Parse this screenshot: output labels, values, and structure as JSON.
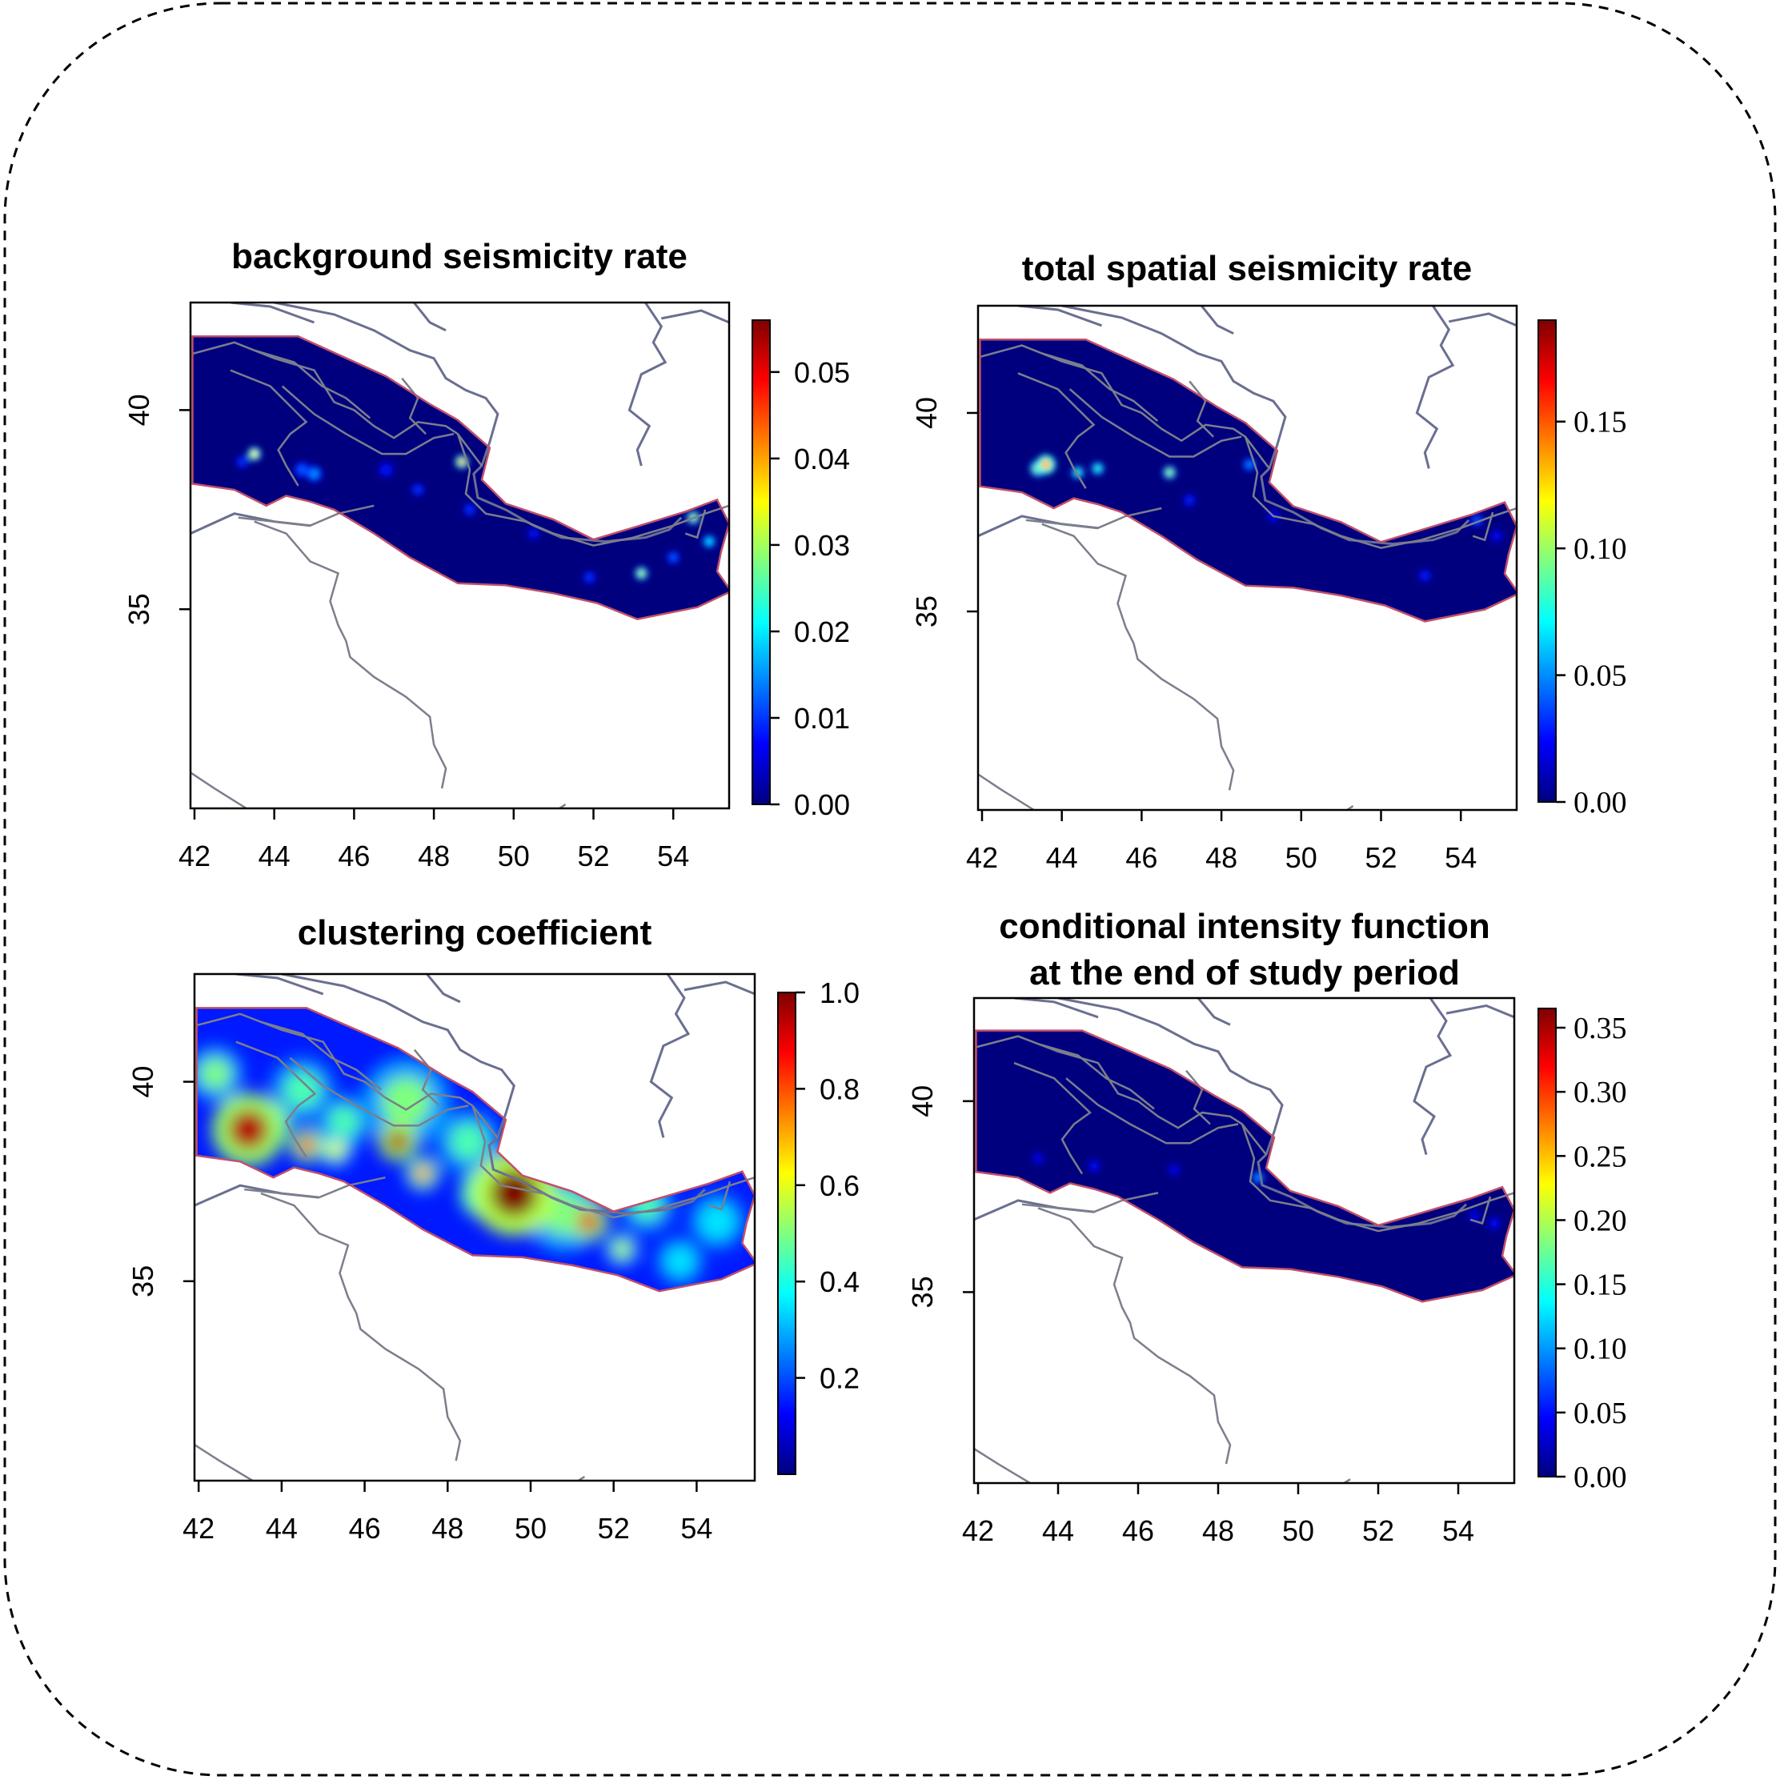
{
  "chart_data": [
    {
      "type": "heatmap",
      "title": "background seismicity rate",
      "xlabel": "",
      "ylabel": "",
      "x_ticks": [
        "42",
        "44",
        "46",
        "48",
        "50",
        "52",
        "54"
      ],
      "x_tick_values": [
        42,
        44,
        46,
        48,
        50,
        52,
        54
      ],
      "y_ticks": [
        "35",
        "40"
      ],
      "y_tick_values": [
        35,
        40
      ],
      "xlim": [
        41.9,
        55.4
      ],
      "ylim": [
        30.0,
        42.7
      ],
      "colorbar": {
        "ticks": [
          "0.00",
          "0.01",
          "0.02",
          "0.03",
          "0.04",
          "0.05"
        ],
        "tick_values": [
          0,
          0.01,
          0.02,
          0.03,
          0.04,
          0.05
        ],
        "range": [
          0,
          0.056
        ],
        "font": "sans"
      },
      "base_level": 0.0,
      "hotspots": [
        {
          "lon": 43.5,
          "lat": 38.9,
          "value": 0.035,
          "r": 0.12
        },
        {
          "lon": 48.7,
          "lat": 38.7,
          "value": 0.04,
          "r": 0.12
        },
        {
          "lon": 53.2,
          "lat": 35.9,
          "value": 0.03,
          "r": 0.12
        },
        {
          "lon": 54.5,
          "lat": 37.3,
          "value": 0.03,
          "r": 0.12
        },
        {
          "lon": 54.9,
          "lat": 36.7,
          "value": 0.02,
          "r": 0.12
        },
        {
          "lon": 45.0,
          "lat": 38.4,
          "value": 0.015,
          "r": 0.15
        },
        {
          "lon": 44.7,
          "lat": 38.5,
          "value": 0.012,
          "r": 0.15
        },
        {
          "lon": 43.2,
          "lat": 38.7,
          "value": 0.01,
          "r": 0.12
        },
        {
          "lon": 46.8,
          "lat": 38.5,
          "value": 0.008,
          "r": 0.15
        },
        {
          "lon": 47.6,
          "lat": 38.0,
          "value": 0.01,
          "r": 0.12
        },
        {
          "lon": 48.9,
          "lat": 37.5,
          "value": 0.01,
          "r": 0.12
        },
        {
          "lon": 50.5,
          "lat": 36.9,
          "value": 0.008,
          "r": 0.12
        },
        {
          "lon": 51.9,
          "lat": 35.8,
          "value": 0.01,
          "r": 0.1
        },
        {
          "lon": 54.0,
          "lat": 36.3,
          "value": 0.012,
          "r": 0.1
        }
      ]
    },
    {
      "type": "heatmap",
      "title": "total spatial seismicity rate",
      "xlabel": "",
      "ylabel": "",
      "x_ticks": [
        "42",
        "44",
        "46",
        "48",
        "50",
        "52",
        "54"
      ],
      "x_tick_values": [
        42,
        44,
        46,
        48,
        50,
        52,
        54
      ],
      "y_ticks": [
        "35",
        "40"
      ],
      "y_tick_values": [
        35,
        40
      ],
      "xlim": [
        41.9,
        55.4
      ],
      "ylim": [
        30.0,
        42.7
      ],
      "colorbar": {
        "ticks": [
          "0.00",
          "0.05",
          "0.10",
          "0.15"
        ],
        "tick_values": [
          0,
          0.05,
          0.1,
          0.15
        ],
        "range": [
          0,
          0.19
        ],
        "font": "serif"
      },
      "base_level": 0.0,
      "hotspots": [
        {
          "lon": 43.6,
          "lat": 38.7,
          "value": 0.13,
          "r": 0.18
        },
        {
          "lon": 43.4,
          "lat": 38.6,
          "value": 0.1,
          "r": 0.15
        },
        {
          "lon": 44.4,
          "lat": 38.5,
          "value": 0.08,
          "r": 0.1
        },
        {
          "lon": 44.9,
          "lat": 38.6,
          "value": 0.08,
          "r": 0.1
        },
        {
          "lon": 46.7,
          "lat": 38.5,
          "value": 0.1,
          "r": 0.1
        },
        {
          "lon": 48.7,
          "lat": 38.7,
          "value": 0.05,
          "r": 0.1
        },
        {
          "lon": 47.2,
          "lat": 37.8,
          "value": 0.03,
          "r": 0.1
        },
        {
          "lon": 49.3,
          "lat": 37.4,
          "value": 0.025,
          "r": 0.12
        },
        {
          "lon": 54.4,
          "lat": 37.3,
          "value": 0.04,
          "r": 0.1
        },
        {
          "lon": 53.1,
          "lat": 35.9,
          "value": 0.03,
          "r": 0.1
        },
        {
          "lon": 54.9,
          "lat": 36.9,
          "value": 0.025,
          "r": 0.1
        }
      ]
    },
    {
      "type": "heatmap",
      "title": "clustering coefficient",
      "xlabel": "",
      "ylabel": "",
      "x_ticks": [
        "42",
        "44",
        "46",
        "48",
        "50",
        "52",
        "54"
      ],
      "x_tick_values": [
        42,
        44,
        46,
        48,
        50,
        52,
        54
      ],
      "y_ticks": [
        "35",
        "40"
      ],
      "y_tick_values": [
        35,
        40
      ],
      "xlim": [
        41.9,
        55.4
      ],
      "ylim": [
        30.0,
        42.7
      ],
      "colorbar": {
        "ticks": [
          "0.2",
          "0.4",
          "0.6",
          "0.8",
          "1.0"
        ],
        "tick_values": [
          0.2,
          0.4,
          0.6,
          0.8,
          1.0
        ],
        "range": [
          0,
          1.0
        ],
        "font": "sans"
      },
      "base_level": 0.15,
      "hotspots": [
        {
          "lon": 43.2,
          "lat": 38.8,
          "value": 0.95,
          "r": 0.65
        },
        {
          "lon": 43.6,
          "lat": 38.9,
          "value": 0.85,
          "r": 0.45
        },
        {
          "lon": 44.6,
          "lat": 38.4,
          "value": 0.85,
          "r": 0.3
        },
        {
          "lon": 45.3,
          "lat": 38.3,
          "value": 0.6,
          "r": 0.3
        },
        {
          "lon": 46.8,
          "lat": 38.5,
          "value": 0.95,
          "r": 0.35
        },
        {
          "lon": 47.4,
          "lat": 37.7,
          "value": 0.75,
          "r": 0.3
        },
        {
          "lon": 49.6,
          "lat": 37.2,
          "value": 1.0,
          "r": 0.75
        },
        {
          "lon": 48.9,
          "lat": 37.2,
          "value": 0.8,
          "r": 0.45
        },
        {
          "lon": 51.4,
          "lat": 36.5,
          "value": 0.9,
          "r": 0.35
        },
        {
          "lon": 52.2,
          "lat": 35.8,
          "value": 0.55,
          "r": 0.3
        },
        {
          "lon": 42.4,
          "lat": 40.2,
          "value": 0.5,
          "r": 0.5
        },
        {
          "lon": 44.5,
          "lat": 39.8,
          "value": 0.45,
          "r": 0.6
        },
        {
          "lon": 47.0,
          "lat": 39.5,
          "value": 0.5,
          "r": 0.8
        },
        {
          "lon": 48.5,
          "lat": 38.5,
          "value": 0.45,
          "r": 0.6
        },
        {
          "lon": 50.8,
          "lat": 36.7,
          "value": 0.5,
          "r": 0.7
        },
        {
          "lon": 52.8,
          "lat": 36.9,
          "value": 0.45,
          "r": 0.5
        },
        {
          "lon": 54.5,
          "lat": 36.5,
          "value": 0.35,
          "r": 0.6
        },
        {
          "lon": 53.6,
          "lat": 35.5,
          "value": 0.35,
          "r": 0.5
        },
        {
          "lon": 45.5,
          "lat": 39.0,
          "value": 0.45,
          "r": 0.5
        }
      ]
    },
    {
      "type": "heatmap",
      "title": "conditional intensity function",
      "subtitle": "at the end of study period",
      "xlabel": "",
      "ylabel": "",
      "x_ticks": [
        "42",
        "44",
        "46",
        "48",
        "50",
        "52",
        "54"
      ],
      "x_tick_values": [
        42,
        44,
        46,
        48,
        50,
        52,
        54
      ],
      "y_ticks": [
        "35",
        "40"
      ],
      "y_tick_values": [
        35,
        40
      ],
      "xlim": [
        41.9,
        55.4
      ],
      "ylim": [
        30.0,
        42.7
      ],
      "colorbar": {
        "ticks": [
          "0.00",
          "0.05",
          "0.10",
          "0.15",
          "0.20",
          "0.25",
          "0.30",
          "0.35"
        ],
        "tick_values": [
          0,
          0.05,
          0.1,
          0.15,
          0.2,
          0.25,
          0.3,
          0.35
        ],
        "range": [
          0,
          0.365
        ],
        "font": "serif"
      },
      "base_level": 0.0,
      "hotspots": [
        {
          "lon": 43.5,
          "lat": 38.5,
          "value": 0.04,
          "r": 0.1
        },
        {
          "lon": 44.9,
          "lat": 38.3,
          "value": 0.05,
          "r": 0.1
        },
        {
          "lon": 46.9,
          "lat": 38.2,
          "value": 0.04,
          "r": 0.1
        },
        {
          "lon": 49.0,
          "lat": 38.0,
          "value": 0.1,
          "r": 0.08
        },
        {
          "lon": 54.4,
          "lat": 37.0,
          "value": 0.04,
          "r": 0.08
        },
        {
          "lon": 54.9,
          "lat": 36.8,
          "value": 0.05,
          "r": 0.08
        }
      ]
    }
  ],
  "colors": {
    "colormap": [
      "#00007f",
      "#0000ff",
      "#007fff",
      "#00ffff",
      "#7fff7f",
      "#ffff00",
      "#ff7f00",
      "#ff0000",
      "#7f0000"
    ],
    "region_outline": "#c0506a",
    "boundary_line": "#7b7f8c",
    "coast_line": "#6a6f90"
  }
}
